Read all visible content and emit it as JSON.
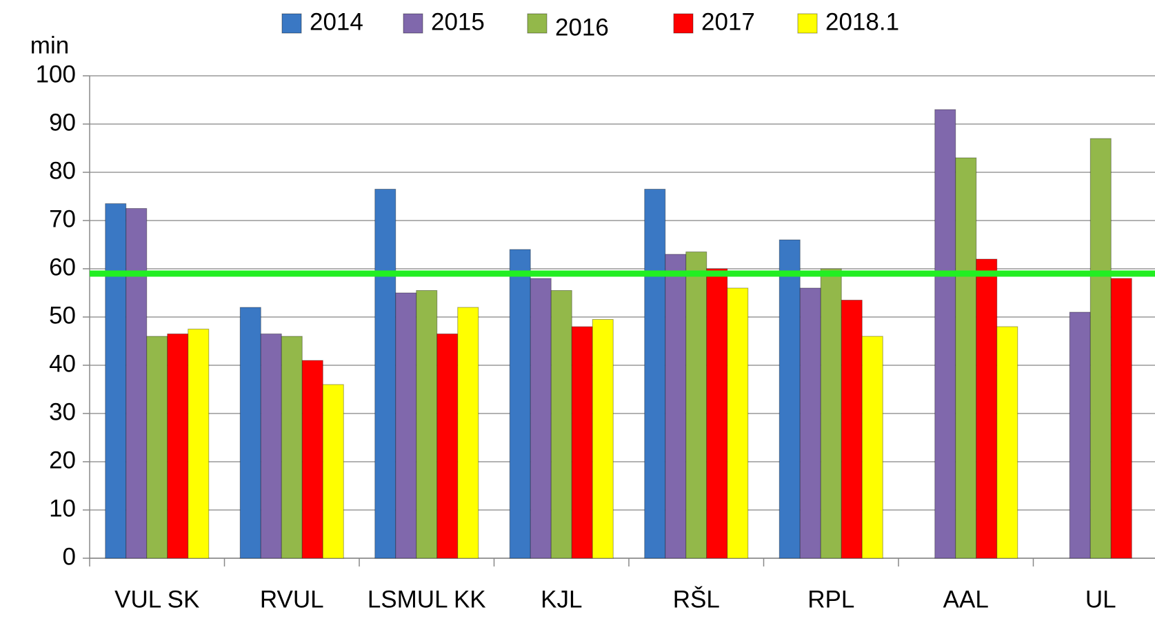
{
  "chart_data": {
    "type": "bar",
    "y_unit": "min",
    "categories": [
      "VUL SK",
      "RVUL",
      "LSMUL KK",
      "KJL",
      "RŠL",
      "RPL",
      "AAL",
      "UL"
    ],
    "series": [
      {
        "name": "2014",
        "color": "#3a78c4",
        "values": [
          73.5,
          52,
          76.5,
          64,
          76.5,
          66,
          null,
          null
        ]
      },
      {
        "name": "2015",
        "color": "#8068ac",
        "values": [
          72.5,
          46.5,
          55,
          58,
          63,
          56,
          93,
          51
        ]
      },
      {
        "name": "2016",
        "color": "#93b84a",
        "values": [
          46,
          46,
          55.5,
          55.5,
          63.5,
          60,
          83,
          87
        ]
      },
      {
        "name": "2017",
        "color": "#ff0000",
        "values": [
          46.5,
          41,
          46.5,
          48,
          60,
          53.5,
          62,
          58
        ]
      },
      {
        "name": "2018.1",
        "color": "#ffff00",
        "values": [
          47.5,
          36,
          52,
          49.5,
          56,
          46,
          48,
          null
        ]
      }
    ],
    "reference_line": {
      "value": 59,
      "color": "#22ee22"
    },
    "ylim": [
      0,
      100
    ],
    "yticks": [
      0,
      10,
      20,
      30,
      40,
      50,
      60,
      70,
      80,
      90,
      100
    ],
    "grid": true
  }
}
